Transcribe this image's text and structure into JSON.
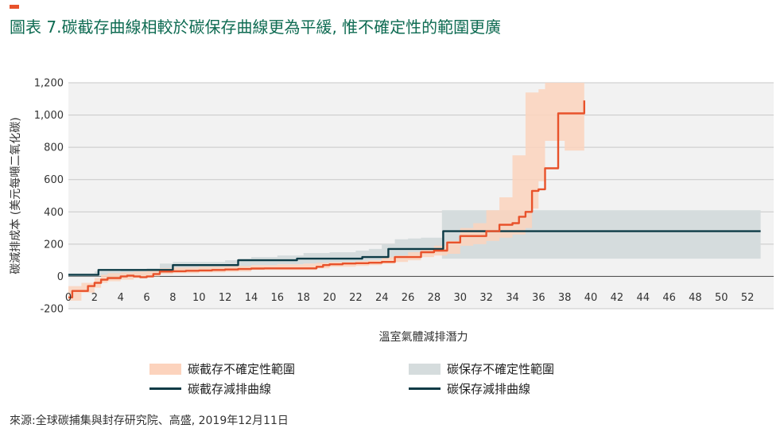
{
  "title": "圖表 7.碳截存曲線相較於碳保存曲線更為平緩, 惟不確定性的範圍更廣",
  "source": "來源:全球碳捕集與封存研究院、高盛, 2019年12月11日",
  "colors": {
    "accent": "#e8522b",
    "title": "#0e6b52",
    "plot_bg": "#f2f2f2",
    "grid": "#c8c8c8",
    "seq_line": "#e8522b",
    "seq_band": "#fcd3bd",
    "pres_line": "#0d3b46",
    "pres_band": "#d5dcdd"
  },
  "chart_data": {
    "type": "line",
    "xlabel": "溫室氣體減排潛力",
    "ylabel": "碳減排成本 (美元每噸二氧化碳)",
    "xlim": [
      0,
      54
    ],
    "ylim": [
      -200,
      1200
    ],
    "x_ticks": [
      0,
      2,
      4,
      6,
      8,
      10,
      12,
      14,
      16,
      18,
      20,
      22,
      24,
      26,
      28,
      30,
      32,
      34,
      36,
      38,
      40,
      42,
      44,
      46,
      48,
      50,
      52
    ],
    "y_ticks": [
      -200,
      0,
      200,
      400,
      600,
      800,
      1000,
      1200
    ],
    "y_tick_labels": [
      "-200",
      "0",
      "200",
      "400",
      "600",
      "800",
      "1,000",
      "1,200"
    ],
    "grid": true,
    "legend_position": "bottom",
    "series": [
      {
        "name": "碳截存不確定性範圍",
        "kind": "band",
        "x": [
          0,
          0.5,
          1,
          2,
          2.5,
          3,
          4,
          5,
          6,
          7,
          8,
          10,
          12,
          13,
          14,
          16,
          18,
          19,
          20,
          22,
          23,
          24,
          25,
          26,
          27,
          28,
          29,
          30,
          31,
          32,
          33,
          34,
          35,
          35.5,
          36,
          36.5,
          37,
          38,
          39.5
        ],
        "low": [
          -150,
          -150,
          -100,
          -70,
          -40,
          -30,
          -20,
          -10,
          0,
          15,
          20,
          25,
          28,
          30,
          40,
          40,
          40,
          50,
          60,
          65,
          70,
          80,
          90,
          100,
          120,
          130,
          140,
          190,
          200,
          220,
          240,
          260,
          300,
          420,
          590,
          840,
          840,
          780,
          780
        ],
        "high": [
          -60,
          -60,
          -40,
          -10,
          10,
          20,
          25,
          30,
          40,
          50,
          55,
          60,
          62,
          65,
          70,
          75,
          80,
          85,
          90,
          95,
          100,
          120,
          130,
          150,
          170,
          190,
          220,
          300,
          330,
          410,
          490,
          750,
          1140,
          1140,
          1160,
          1200,
          1200,
          1200,
          1200
        ]
      },
      {
        "name": "碳保存不確定性範圍",
        "kind": "band",
        "x": [
          0,
          2,
          4,
          6,
          7,
          8,
          10,
          12,
          13,
          14,
          16,
          18,
          20,
          22,
          23,
          24,
          25,
          26,
          27,
          28,
          28.6,
          29,
          31,
          32,
          33,
          34,
          35,
          36,
          37,
          40,
          45,
          50,
          53
        ],
        "low": [
          0,
          0,
          0,
          10,
          20,
          30,
          40,
          50,
          60,
          70,
          75,
          80,
          85,
          95,
          100,
          110,
          120,
          130,
          140,
          150,
          110,
          110,
          110,
          110,
          110,
          110,
          110,
          110,
          110,
          110,
          110,
          110,
          110
        ],
        "high": [
          20,
          30,
          45,
          50,
          80,
          90,
          90,
          100,
          110,
          120,
          130,
          145,
          150,
          160,
          170,
          200,
          230,
          235,
          240,
          240,
          410,
          410,
          410,
          410,
          410,
          410,
          410,
          410,
          410,
          410,
          410,
          410,
          410
        ]
      },
      {
        "name": "碳截存減排曲線",
        "kind": "step",
        "x": [
          0,
          0.3,
          0.5,
          1,
          1.5,
          2,
          2.5,
          3,
          4,
          4.5,
          5,
          5.5,
          6,
          6.5,
          7,
          8,
          9,
          10,
          11,
          12,
          13,
          14,
          15,
          16,
          17,
          18,
          19,
          19.5,
          20,
          21,
          22,
          23,
          24,
          25,
          26,
          27,
          28,
          29,
          30,
          31,
          32,
          33,
          34,
          34.5,
          35,
          35.5,
          36,
          36.5,
          37.5,
          39.5
        ],
        "y": [
          -130,
          -90,
          -90,
          -90,
          -60,
          -40,
          -20,
          -10,
          0,
          5,
          0,
          -5,
          0,
          15,
          30,
          32,
          35,
          37,
          40,
          43,
          46,
          49,
          50,
          50,
          50,
          50,
          60,
          70,
          75,
          80,
          82,
          85,
          90,
          120,
          120,
          150,
          160,
          210,
          250,
          250,
          280,
          320,
          330,
          370,
          400,
          530,
          540,
          670,
          1010,
          1090
        ]
      },
      {
        "name": "碳保存減排曲線",
        "kind": "step",
        "x": [
          0,
          2.3,
          8,
          13,
          17.5,
          22.5,
          24.5,
          28.7,
          53
        ],
        "y": [
          10,
          40,
          70,
          100,
          110,
          120,
          170,
          280,
          280
        ]
      }
    ]
  }
}
